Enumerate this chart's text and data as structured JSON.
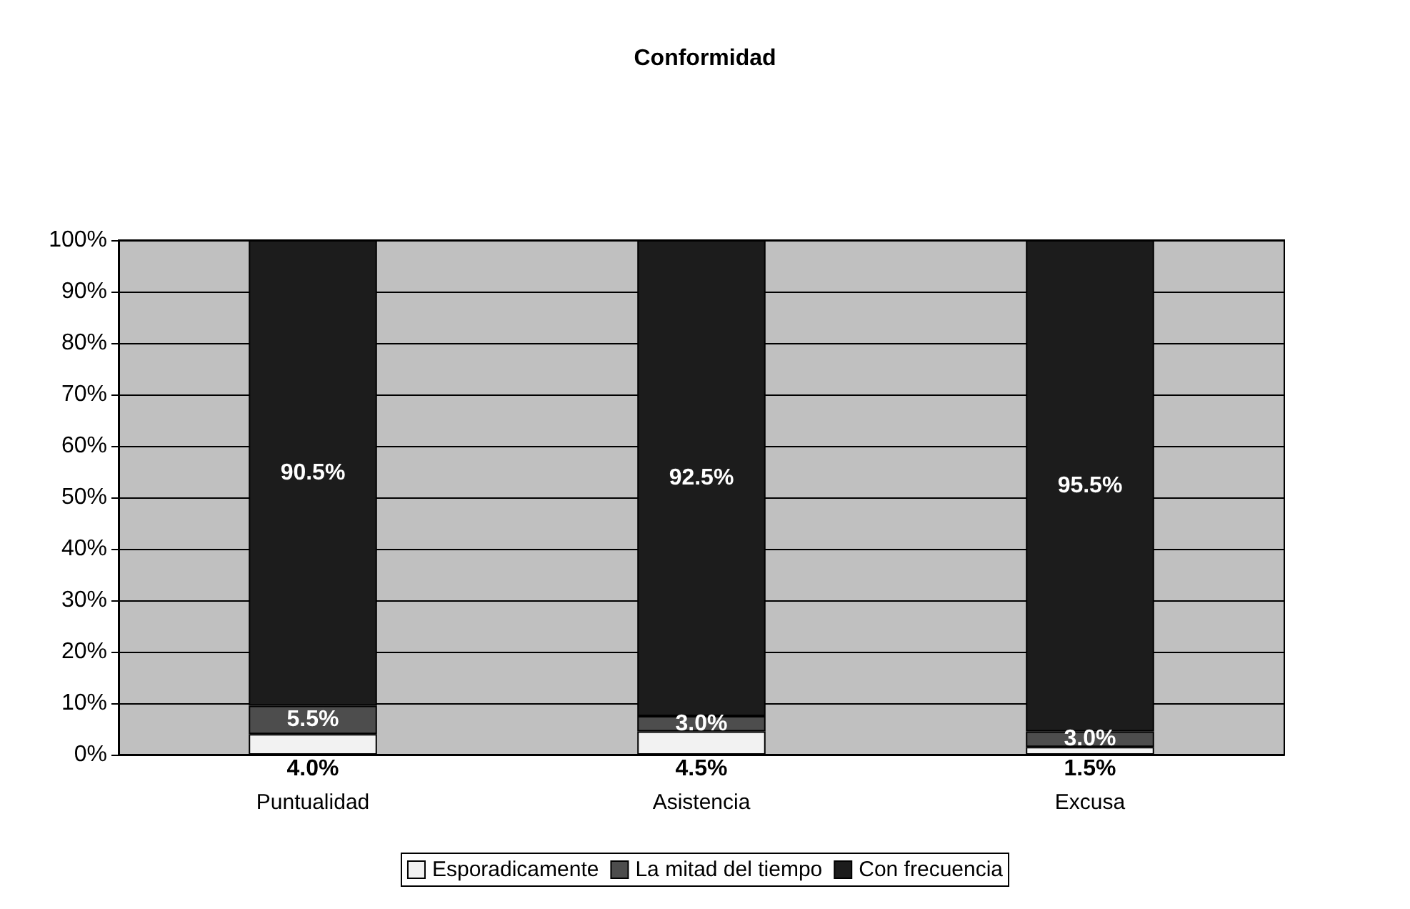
{
  "chart_data": {
    "type": "bar",
    "title": "Conformidad",
    "stacked": true,
    "categories": [
      "Puntualidad",
      "Asistencia",
      "Excusa"
    ],
    "series": [
      {
        "name": "Esporadicamente",
        "color": "#f2f2f2",
        "values": [
          4.0,
          4.5,
          1.5
        ],
        "value_labels": [
          "4.0%",
          "4.5%",
          "1.5%"
        ]
      },
      {
        "name": "La mitad del tiempo",
        "color": "#4d4d4d",
        "values": [
          5.5,
          3.0,
          3.0
        ],
        "value_labels": [
          "5.5%",
          "3.0%",
          "3.0%"
        ]
      },
      {
        "name": "Con frecuencia",
        "color": "#1c1c1c",
        "values": [
          90.5,
          92.5,
          95.5
        ],
        "value_labels": [
          "90.5%",
          "92.5%",
          "95.5%"
        ]
      }
    ],
    "ylim": [
      0,
      100
    ],
    "yticks": [
      {
        "value": 0,
        "label": "0%"
      },
      {
        "value": 10,
        "label": "10%"
      },
      {
        "value": 20,
        "label": "20%"
      },
      {
        "value": 30,
        "label": "30%"
      },
      {
        "value": 40,
        "label": "40%"
      },
      {
        "value": 50,
        "label": "50%"
      },
      {
        "value": 60,
        "label": "60%"
      },
      {
        "value": 70,
        "label": "70%"
      },
      {
        "value": 80,
        "label": "80%"
      },
      {
        "value": 90,
        "label": "90%"
      },
      {
        "value": 100,
        "label": "100%"
      }
    ],
    "grid": "y",
    "legend": "bottom"
  }
}
